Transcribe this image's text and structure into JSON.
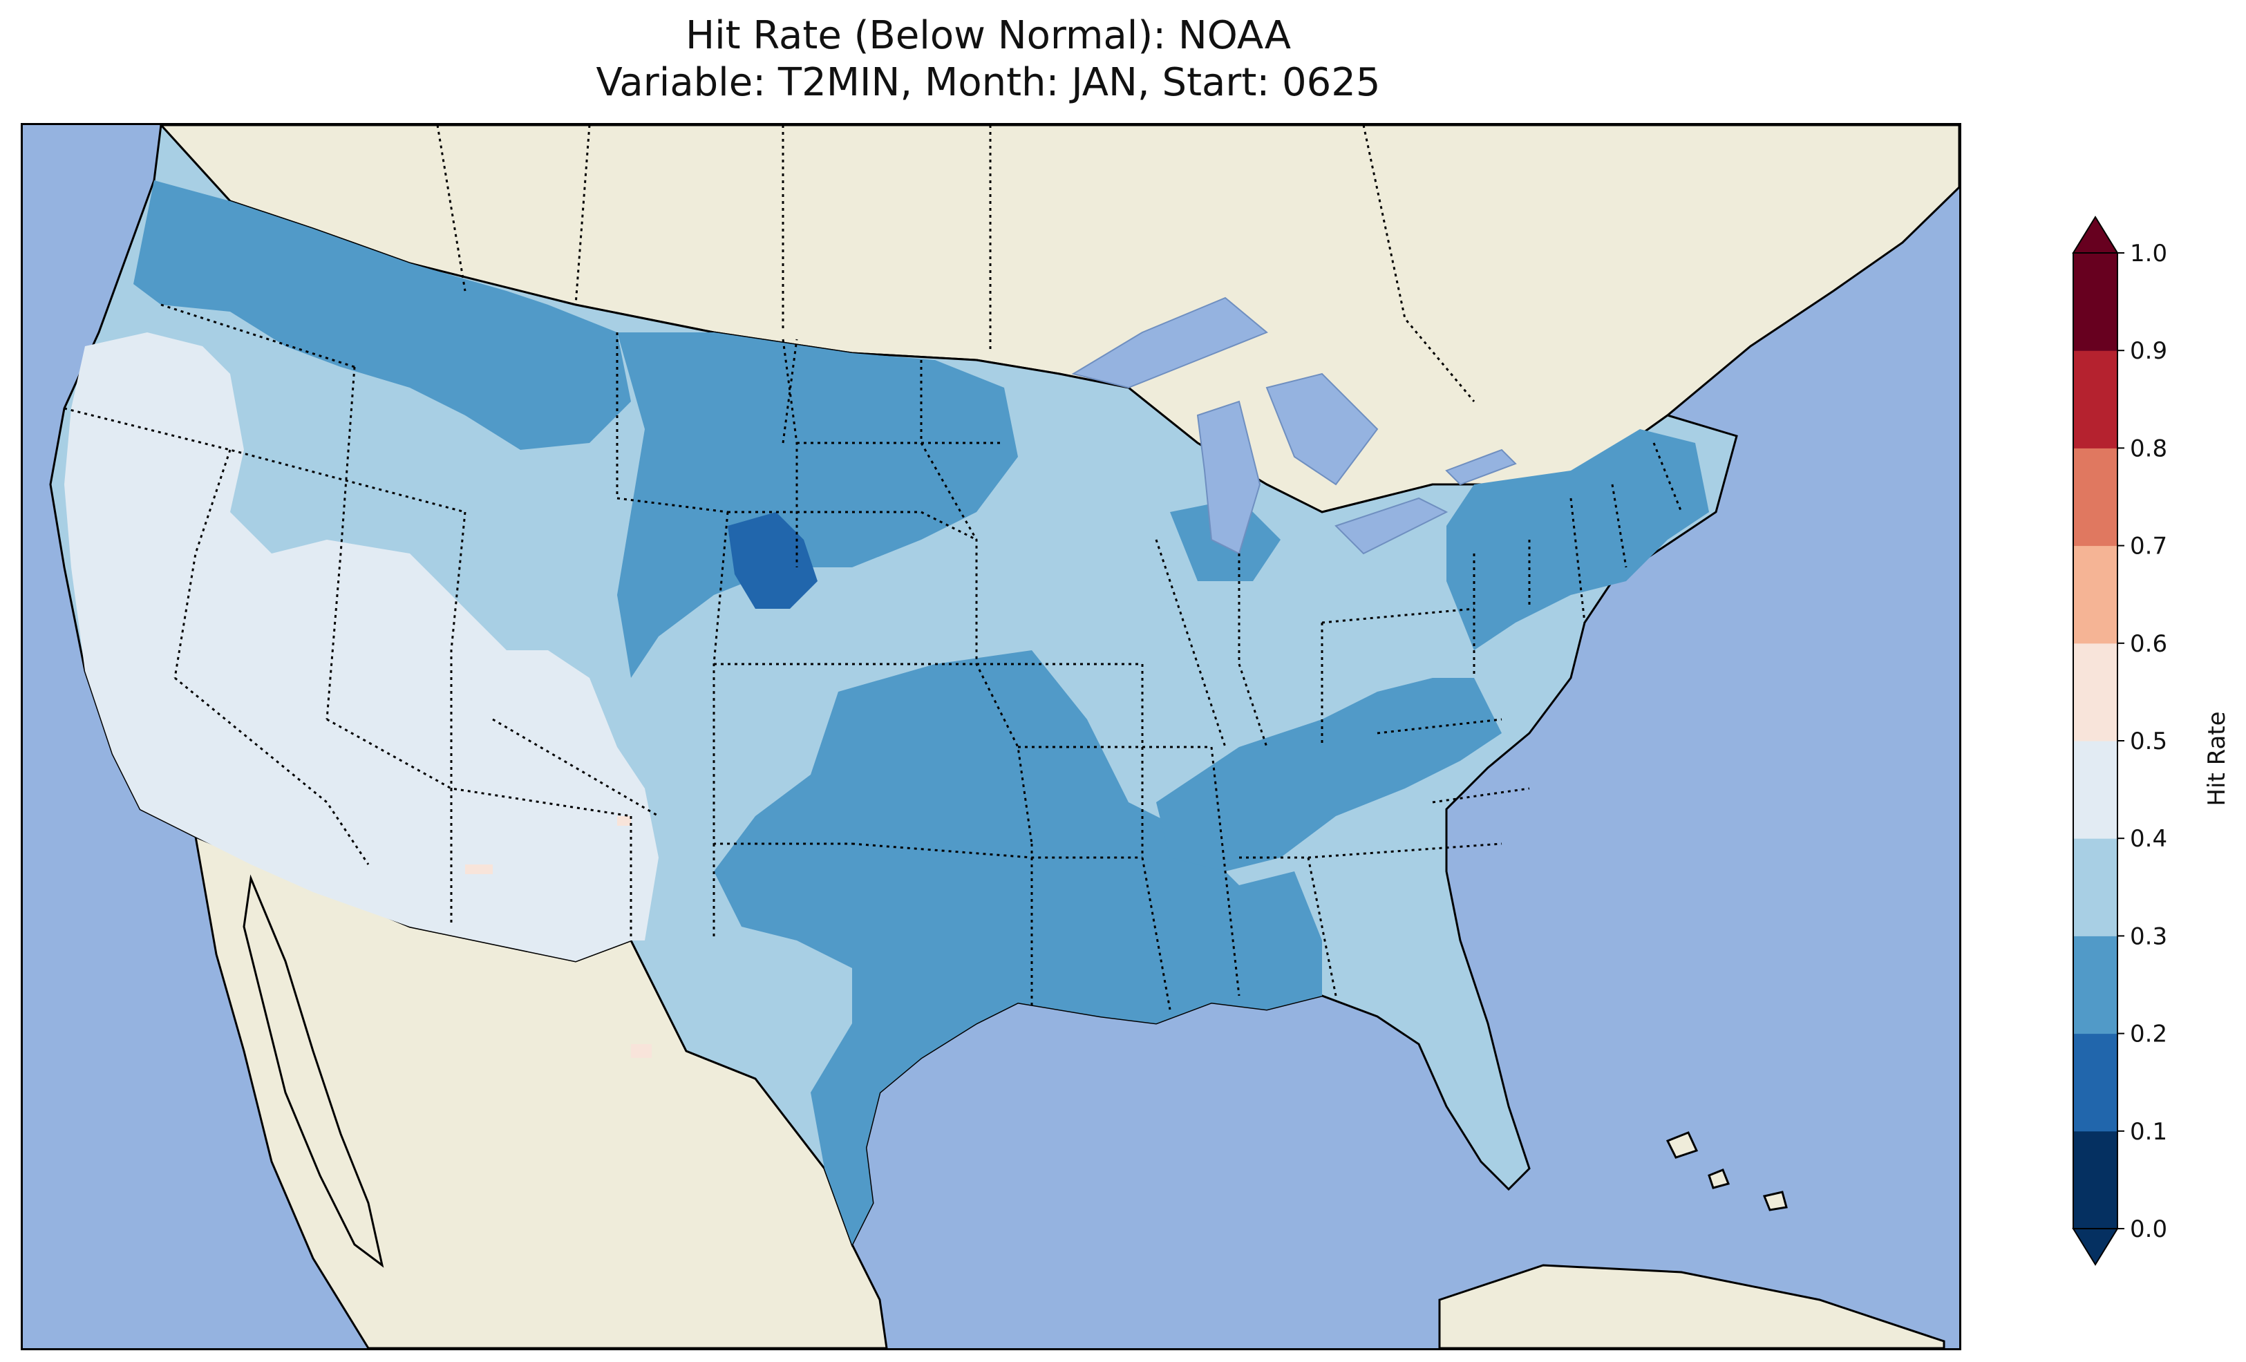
{
  "title": {
    "line1": "Hit Rate (Below Normal): NOAA",
    "line2": "Variable: T2MIN, Month: JAN, Start: 0625"
  },
  "colorbar": {
    "label": "Hit Rate",
    "ticks": [
      "0.0",
      "0.1",
      "0.2",
      "0.3",
      "0.4",
      "0.5",
      "0.6",
      "0.7",
      "0.8",
      "0.9",
      "1.0"
    ],
    "colors": [
      "#053061",
      "#2166ac",
      "#4393c3",
      "#92c5de",
      "#d1e5f0",
      "#f7f7f7",
      "#fddbc7",
      "#f4a582",
      "#d6604d",
      "#b2182b",
      "#67001f"
    ],
    "bins": [
      {
        "range": "0.0-0.1",
        "color": "#053061"
      },
      {
        "range": "0.1-0.2",
        "color": "#2166ac"
      },
      {
        "range": "0.2-0.3",
        "color": "#519ac8"
      },
      {
        "range": "0.3-0.4",
        "color": "#a8cfe4"
      },
      {
        "range": "0.4-0.5",
        "color": "#e2ebf3"
      },
      {
        "range": "0.5-0.6",
        "color": "#f8e4da"
      },
      {
        "range": "0.6-0.7",
        "color": "#f5b495"
      },
      {
        "range": "0.7-0.8",
        "color": "#e07860"
      },
      {
        "range": "0.8-0.9",
        "color": "#b5222f"
      },
      {
        "range": "0.9-1.0",
        "color": "#67001f"
      }
    ],
    "under_color": "#053061",
    "over_color": "#67001f"
  },
  "map": {
    "ocean_color": "#95b3e0",
    "land_color": "#efecda",
    "regions": [
      {
        "name": "Northwest",
        "category": "0.3-0.4"
      },
      {
        "name": "California / Great Basin",
        "category": "0.4-0.5"
      },
      {
        "name": "Northern Rockies / Plains",
        "category": "0.2-0.3"
      },
      {
        "name": "Wyoming core",
        "category": "0.1-0.2"
      },
      {
        "name": "Southern Plains / Gulf Coast",
        "category": "0.2-0.3"
      },
      {
        "name": "Ohio Valley / Tennessee",
        "category": "0.2-0.3"
      },
      {
        "name": "Northeast",
        "category": "0.2-0.3"
      },
      {
        "name": "Southeast / Florida",
        "category": "0.3-0.4"
      },
      {
        "name": "Isolated cells (NM, AZ, TX)",
        "category": "0.5-0.6"
      }
    ]
  }
}
